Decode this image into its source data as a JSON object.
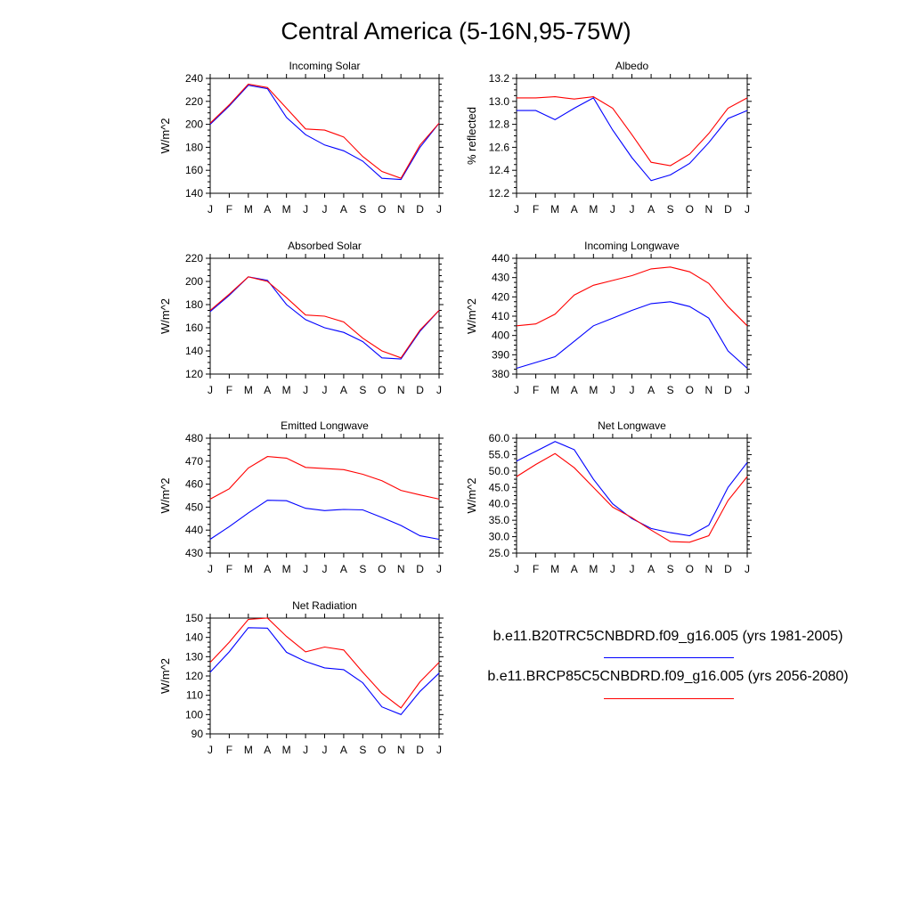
{
  "title": "Central America (5-16N,95-75W)",
  "legend": [
    {
      "label": "b.e11.B20TRC5CNBDRD.f09_g16.005 (yrs 1981-2005)",
      "color": "#0000ff"
    },
    {
      "label": "b.e11.BRCP85C5CNBDRD.f09_g16.005 (yrs 2056-2080)",
      "color": "#ff0000"
    }
  ],
  "chart_data": [
    {
      "type": "line",
      "title": "Incoming Solar",
      "xlabel": "",
      "ylabel": "W/m^2",
      "categories": [
        "J",
        "F",
        "M",
        "A",
        "M",
        "J",
        "J",
        "A",
        "S",
        "O",
        "N",
        "D",
        "J"
      ],
      "ylim": [
        140,
        240
      ],
      "yticks": [
        140,
        160,
        180,
        200,
        220,
        240
      ],
      "ydec": 0,
      "series": [
        {
          "color": "#0000ff",
          "values": [
            200,
            216,
            234,
            231,
            206,
            191,
            182,
            177,
            168,
            153,
            152,
            180,
            201
          ]
        },
        {
          "color": "#ff0000",
          "values": [
            201,
            217,
            235,
            232,
            214,
            196,
            195,
            189,
            172,
            159,
            153,
            182,
            201
          ]
        }
      ]
    },
    {
      "type": "line",
      "title": "Albedo",
      "xlabel": "",
      "ylabel": "% reflected",
      "categories": [
        "J",
        "F",
        "M",
        "A",
        "M",
        "J",
        "J",
        "A",
        "S",
        "O",
        "N",
        "D",
        "J"
      ],
      "ylim": [
        12.2,
        13.2
      ],
      "yticks": [
        12.2,
        12.4,
        12.6,
        12.8,
        13.0,
        13.2
      ],
      "ydec": 1,
      "series": [
        {
          "color": "#0000ff",
          "values": [
            12.92,
            12.92,
            12.84,
            12.94,
            13.03,
            12.75,
            12.51,
            12.31,
            12.36,
            12.46,
            12.64,
            12.85,
            12.92
          ]
        },
        {
          "color": "#ff0000",
          "values": [
            13.03,
            13.03,
            13.04,
            13.02,
            13.04,
            12.94,
            12.71,
            12.47,
            12.44,
            12.54,
            12.72,
            12.94,
            13.03
          ]
        }
      ]
    },
    {
      "type": "line",
      "title": "Absorbed Solar",
      "xlabel": "",
      "ylabel": "W/m^2",
      "categories": [
        "J",
        "F",
        "M",
        "A",
        "M",
        "J",
        "J",
        "A",
        "S",
        "O",
        "N",
        "D",
        "J"
      ],
      "ylim": [
        120,
        220
      ],
      "yticks": [
        120,
        140,
        160,
        180,
        200,
        220
      ],
      "ydec": 0,
      "series": [
        {
          "color": "#0000ff",
          "values": [
            174,
            188,
            204,
            201,
            180,
            167,
            160,
            156,
            148,
            134,
            133,
            157,
            175
          ]
        },
        {
          "color": "#ff0000",
          "values": [
            175,
            189,
            204,
            200,
            186,
            171,
            170,
            165,
            151,
            140,
            134,
            158,
            175
          ]
        }
      ]
    },
    {
      "type": "line",
      "title": "Incoming Longwave",
      "xlabel": "",
      "ylabel": "W/m^2",
      "categories": [
        "J",
        "F",
        "M",
        "A",
        "M",
        "J",
        "J",
        "A",
        "S",
        "O",
        "N",
        "D",
        "J"
      ],
      "ylim": [
        380,
        440
      ],
      "yticks": [
        380,
        390,
        400,
        410,
        420,
        430,
        440
      ],
      "ydec": 0,
      "series": [
        {
          "color": "#0000ff",
          "values": [
            383,
            386,
            389,
            397,
            405,
            409,
            413,
            416.5,
            417.5,
            415,
            409,
            392,
            383
          ]
        },
        {
          "color": "#ff0000",
          "values": [
            405,
            406,
            411,
            421,
            426,
            428.5,
            431,
            434.5,
            435.5,
            433,
            427,
            415,
            405
          ]
        }
      ]
    },
    {
      "type": "line",
      "title": "Emitted Longwave",
      "xlabel": "",
      "ylabel": "W/m^2",
      "categories": [
        "J",
        "F",
        "M",
        "A",
        "M",
        "J",
        "J",
        "A",
        "S",
        "O",
        "N",
        "D",
        "J"
      ],
      "ylim": [
        430,
        480
      ],
      "yticks": [
        430,
        440,
        450,
        460,
        470,
        480
      ],
      "ydec": 0,
      "series": [
        {
          "color": "#0000ff",
          "values": [
            436,
            441.5,
            447.5,
            453,
            452.8,
            449.5,
            448.5,
            449,
            448.8,
            445.5,
            442,
            437.5,
            436
          ]
        },
        {
          "color": "#ff0000",
          "values": [
            453.5,
            458,
            467,
            472,
            471.3,
            467.3,
            466.8,
            466.3,
            464.3,
            461.5,
            457.3,
            455.3,
            453.5
          ]
        }
      ]
    },
    {
      "type": "line",
      "title": "Net Longwave",
      "xlabel": "",
      "ylabel": "W/m^2",
      "categories": [
        "J",
        "F",
        "M",
        "A",
        "M",
        "J",
        "J",
        "A",
        "S",
        "O",
        "N",
        "D",
        "J"
      ],
      "ylim": [
        25,
        60
      ],
      "yticks": [
        25,
        30,
        35,
        40,
        45,
        50,
        55,
        60
      ],
      "ydec": 1,
      "series": [
        {
          "color": "#0000ff",
          "values": [
            53,
            56,
            59,
            56.5,
            47.5,
            40,
            35.5,
            32.5,
            31.2,
            30.3,
            33.5,
            45,
            52.6
          ]
        },
        {
          "color": "#ff0000",
          "values": [
            48.3,
            52,
            55.3,
            51,
            45,
            39,
            35.8,
            32,
            28.5,
            28.3,
            30.3,
            41,
            48.3
          ]
        }
      ]
    },
    {
      "type": "line",
      "title": "Net Radiation",
      "xlabel": "",
      "ylabel": "W/m^2",
      "categories": [
        "J",
        "F",
        "M",
        "A",
        "M",
        "J",
        "J",
        "A",
        "S",
        "O",
        "N",
        "D",
        "J"
      ],
      "ylim": [
        90,
        150
      ],
      "yticks": [
        90,
        100,
        110,
        120,
        130,
        140,
        150
      ],
      "ydec": 0,
      "series": [
        {
          "color": "#0000ff",
          "values": [
            122,
            132.5,
            145,
            144.8,
            132.3,
            127.5,
            124.2,
            123.3,
            116.5,
            104,
            100,
            112,
            121.5
          ]
        },
        {
          "color": "#ff0000",
          "values": [
            127,
            137.5,
            149.3,
            150,
            140.5,
            132.5,
            135,
            133.5,
            122,
            111,
            103.5,
            117,
            127
          ]
        }
      ]
    }
  ]
}
